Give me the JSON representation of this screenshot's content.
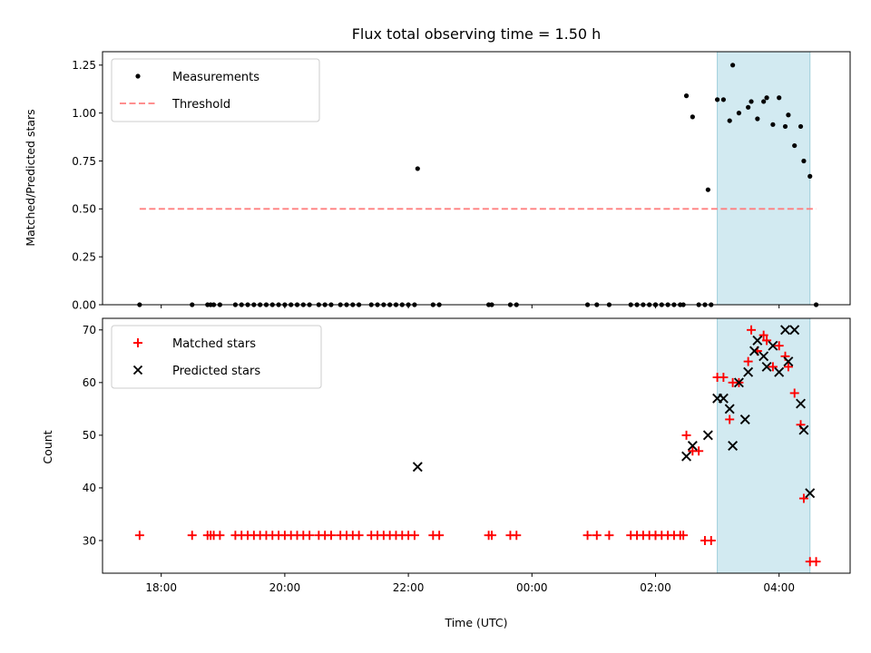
{
  "chart_data": [
    {
      "type": "scatter",
      "title": "Flux total observing time = 1.50 h",
      "ylabel": "Matched/Predicted stars",
      "xlabel": "",
      "x_unit": "hours since 17:00 UTC",
      "xlim": [
        0.05,
        12.15
      ],
      "ylim": [
        0,
        1.32
      ],
      "yticks": [
        0.0,
        0.25,
        0.5,
        0.75,
        1.0,
        1.25
      ],
      "ytick_labels": [
        "0.00",
        "0.25",
        "0.50",
        "0.75",
        "1.00",
        "1.25"
      ],
      "legend_position": "top-left",
      "shaded_span": {
        "x": [
          10.0,
          11.5
        ],
        "color": "#add8e6"
      },
      "series": [
        {
          "name": "Measurements",
          "marker": "dot",
          "color": "#000000",
          "points": [
            [
              0.65,
              0
            ],
            [
              1.5,
              0
            ],
            [
              1.75,
              0
            ],
            [
              1.8,
              0
            ],
            [
              1.85,
              0
            ],
            [
              1.95,
              0
            ],
            [
              2.2,
              0
            ],
            [
              2.3,
              0
            ],
            [
              2.4,
              0
            ],
            [
              2.5,
              0
            ],
            [
              2.6,
              0
            ],
            [
              2.7,
              0
            ],
            [
              2.8,
              0
            ],
            [
              2.9,
              0
            ],
            [
              3.0,
              0
            ],
            [
              3.1,
              0
            ],
            [
              3.2,
              0
            ],
            [
              3.3,
              0
            ],
            [
              3.4,
              0
            ],
            [
              3.55,
              0
            ],
            [
              3.65,
              0
            ],
            [
              3.75,
              0
            ],
            [
              3.9,
              0
            ],
            [
              4.0,
              0
            ],
            [
              4.1,
              0
            ],
            [
              4.2,
              0
            ],
            [
              4.4,
              0
            ],
            [
              4.5,
              0
            ],
            [
              4.6,
              0
            ],
            [
              4.7,
              0
            ],
            [
              4.8,
              0
            ],
            [
              4.9,
              0
            ],
            [
              5.0,
              0
            ],
            [
              5.1,
              0
            ],
            [
              5.15,
              0.71
            ],
            [
              5.4,
              0
            ],
            [
              5.5,
              0
            ],
            [
              6.3,
              0
            ],
            [
              6.35,
              0
            ],
            [
              6.65,
              0
            ],
            [
              6.75,
              0
            ],
            [
              7.9,
              0
            ],
            [
              8.05,
              0
            ],
            [
              8.25,
              0
            ],
            [
              8.6,
              0
            ],
            [
              8.7,
              0
            ],
            [
              8.8,
              0
            ],
            [
              8.9,
              0
            ],
            [
              9.0,
              0
            ],
            [
              9.0,
              0
            ],
            [
              9.1,
              0
            ],
            [
              9.2,
              0
            ],
            [
              9.3,
              0
            ],
            [
              9.4,
              0
            ],
            [
              9.45,
              0
            ],
            [
              9.5,
              1.09
            ],
            [
              9.6,
              0.98
            ],
            [
              9.7,
              0
            ],
            [
              9.8,
              0
            ],
            [
              9.85,
              0.6
            ],
            [
              9.9,
              0
            ],
            [
              10.0,
              1.07
            ],
            [
              10.1,
              1.07
            ],
            [
              10.2,
              0.96
            ],
            [
              10.25,
              1.25
            ],
            [
              10.35,
              1.0
            ],
            [
              10.5,
              1.03
            ],
            [
              10.55,
              1.06
            ],
            [
              10.65,
              0.97
            ],
            [
              10.75,
              1.06
            ],
            [
              10.8,
              1.08
            ],
            [
              10.9,
              0.94
            ],
            [
              11.0,
              1.08
            ],
            [
              11.1,
              0.93
            ],
            [
              11.15,
              0.99
            ],
            [
              11.25,
              0.83
            ],
            [
              11.35,
              0.93
            ],
            [
              11.4,
              0.75
            ],
            [
              11.5,
              0.67
            ],
            [
              11.6,
              0
            ]
          ]
        },
        {
          "name": "Threshold",
          "style": "dashed",
          "color": "#ff7f7f",
          "x": [
            0.65,
            11.6
          ],
          "y": [
            0.5,
            0.5
          ]
        }
      ]
    },
    {
      "type": "scatter",
      "title": "",
      "ylabel": "Count",
      "xlabel": "Time (UTC)",
      "x_unit": "hours since 17:00 UTC",
      "xlim": [
        0.05,
        12.15
      ],
      "ylim": [
        23.8,
        72.2
      ],
      "yticks": [
        30,
        40,
        50,
        60,
        70
      ],
      "ytick_labels": [
        "30",
        "40",
        "50",
        "60",
        "70"
      ],
      "xticks": [
        1,
        3,
        5,
        7,
        9,
        11
      ],
      "xtick_labels": [
        "18:00",
        "20:00",
        "22:00",
        "00:00",
        "02:00",
        "04:00"
      ],
      "legend_position": "top-left",
      "shaded_span": {
        "x": [
          10.0,
          11.5
        ],
        "color": "#add8e6"
      },
      "series": [
        {
          "name": "Matched stars",
          "marker": "plus",
          "color": "#ff0000",
          "points": [
            [
              0.65,
              31
            ],
            [
              1.5,
              31
            ],
            [
              1.75,
              31
            ],
            [
              1.8,
              31
            ],
            [
              1.85,
              31
            ],
            [
              1.95,
              31
            ],
            [
              2.2,
              31
            ],
            [
              2.3,
              31
            ],
            [
              2.4,
              31
            ],
            [
              2.5,
              31
            ],
            [
              2.6,
              31
            ],
            [
              2.7,
              31
            ],
            [
              2.8,
              31
            ],
            [
              2.9,
              31
            ],
            [
              3.0,
              31
            ],
            [
              3.1,
              31
            ],
            [
              3.2,
              31
            ],
            [
              3.3,
              31
            ],
            [
              3.4,
              31
            ],
            [
              3.55,
              31
            ],
            [
              3.65,
              31
            ],
            [
              3.75,
              31
            ],
            [
              3.9,
              31
            ],
            [
              4.0,
              31
            ],
            [
              4.1,
              31
            ],
            [
              4.2,
              31
            ],
            [
              4.4,
              31
            ],
            [
              4.5,
              31
            ],
            [
              4.6,
              31
            ],
            [
              4.7,
              31
            ],
            [
              4.8,
              31
            ],
            [
              4.9,
              31
            ],
            [
              5.0,
              31
            ],
            [
              5.1,
              31
            ],
            [
              5.4,
              31
            ],
            [
              5.5,
              31
            ],
            [
              6.3,
              31
            ],
            [
              6.35,
              31
            ],
            [
              6.65,
              31
            ],
            [
              6.75,
              31
            ],
            [
              7.9,
              31
            ],
            [
              8.05,
              31
            ],
            [
              8.25,
              31
            ],
            [
              8.6,
              31
            ],
            [
              8.7,
              31
            ],
            [
              8.8,
              31
            ],
            [
              8.9,
              31
            ],
            [
              9.0,
              31
            ],
            [
              9.0,
              31
            ],
            [
              9.1,
              31
            ],
            [
              9.2,
              31
            ],
            [
              9.3,
              31
            ],
            [
              9.4,
              31
            ],
            [
              9.45,
              31
            ],
            [
              9.5,
              50
            ],
            [
              9.6,
              47
            ],
            [
              9.7,
              47
            ],
            [
              9.8,
              30
            ],
            [
              9.9,
              30
            ],
            [
              10.0,
              61
            ],
            [
              10.1,
              61
            ],
            [
              10.2,
              53
            ],
            [
              10.25,
              60
            ],
            [
              10.35,
              60
            ],
            [
              10.5,
              64
            ],
            [
              10.55,
              70
            ],
            [
              10.65,
              66
            ],
            [
              10.75,
              69
            ],
            [
              10.8,
              68
            ],
            [
              10.9,
              63
            ],
            [
              11.0,
              67
            ],
            [
              11.1,
              65
            ],
            [
              11.15,
              63
            ],
            [
              11.25,
              58
            ],
            [
              11.35,
              52
            ],
            [
              11.4,
              38
            ],
            [
              11.5,
              26
            ],
            [
              11.6,
              26
            ]
          ]
        },
        {
          "name": "Predicted stars",
          "marker": "x",
          "color": "#000000",
          "points": [
            [
              5.15,
              44
            ],
            [
              9.5,
              46
            ],
            [
              9.6,
              48
            ],
            [
              9.85,
              50
            ],
            [
              10.0,
              57
            ],
            [
              10.1,
              57
            ],
            [
              10.2,
              55
            ],
            [
              10.25,
              48
            ],
            [
              10.35,
              60
            ],
            [
              10.45,
              53
            ],
            [
              10.5,
              62
            ],
            [
              10.6,
              66
            ],
            [
              10.65,
              68
            ],
            [
              10.75,
              65
            ],
            [
              10.8,
              63
            ],
            [
              10.9,
              67
            ],
            [
              11.0,
              62
            ],
            [
              11.1,
              70
            ],
            [
              11.15,
              64
            ],
            [
              11.25,
              70
            ],
            [
              11.35,
              56
            ],
            [
              11.4,
              51
            ],
            [
              11.5,
              39
            ]
          ]
        }
      ]
    }
  ]
}
